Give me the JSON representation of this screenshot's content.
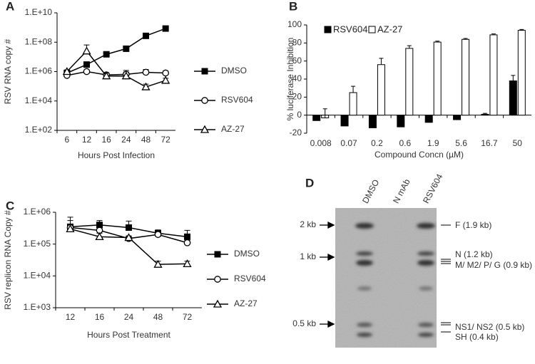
{
  "chart_data": [
    {
      "label": "A",
      "type": "line",
      "y_label": "RSV RNA copy #",
      "x_label": "Hours Post Infection",
      "categories": [
        "6",
        "12",
        "16",
        "24",
        "48",
        "72"
      ],
      "yscale": "log",
      "ylim": [
        100,
        10000000000
      ],
      "yticks": [
        {
          "value": 100,
          "label": "1.E+02"
        },
        {
          "value": 10000,
          "label": "1.E+04"
        },
        {
          "value": 1000000,
          "label": "1.E+06"
        },
        {
          "value": 100000000,
          "label": "1.E+08"
        },
        {
          "value": 10000000000,
          "label": "1.E+10"
        }
      ],
      "legend": "right",
      "series": [
        {
          "name": "DMSO",
          "color": "#000000",
          "marker": "square",
          "values": [
            800000,
            3000000,
            15000000,
            36000000,
            270000000,
            850000000
          ],
          "errors": [
            400000,
            1500000,
            5000000,
            15000000,
            100000000,
            300000000
          ]
        },
        {
          "name": "RSV604",
          "color": "#000000",
          "marker": "circle",
          "values": [
            550000,
            1000000,
            600000,
            650000,
            900000,
            800000
          ],
          "errors": [
            200000,
            300000,
            200000,
            300000,
            500000,
            300000
          ]
        },
        {
          "name": "AZ-27",
          "color": "#000000",
          "marker": "triangle",
          "values": [
            1000000,
            25000000,
            500000,
            500000,
            90000,
            250000
          ],
          "errors": [
            300000,
            40000000,
            300000,
            700000,
            50000,
            100000
          ]
        }
      ]
    },
    {
      "label": "B",
      "type": "bar",
      "y_label": "% luciferase Inhibition",
      "x_label": "Compound Concn (µM)",
      "categories": [
        "0.008",
        "0.07",
        "0.2",
        "0.6",
        "1.9",
        "5.6",
        "16.7",
        "50"
      ],
      "ylim": [
        -20,
        100
      ],
      "yticks": [
        -20,
        0,
        20,
        40,
        60,
        80,
        100
      ],
      "legend": "top-left",
      "series": [
        {
          "name": "RSV604",
          "color": "#000000",
          "values": [
            -6,
            -12,
            -14,
            -13,
            -8,
            -5,
            1,
            38
          ],
          "errors": [
            1,
            4,
            1,
            4,
            3,
            1,
            1,
            6
          ]
        },
        {
          "name": "AZ-27",
          "color": "#ffffff",
          "values": [
            -3,
            25,
            56,
            74,
            81,
            84,
            89,
            94
          ],
          "errors": [
            10,
            7,
            7,
            3,
            1,
            1,
            1,
            1
          ]
        }
      ]
    },
    {
      "label": "C",
      "type": "line",
      "y_label": "RSV replicon  RNA Copy #",
      "x_label": "Hours Post Treatment",
      "categories": [
        "12",
        "16",
        "24",
        "48",
        "72"
      ],
      "yscale": "log",
      "ylim": [
        1000,
        1000000
      ],
      "yticks": [
        {
          "value": 1000,
          "label": "1.E+03"
        },
        {
          "value": 10000,
          "label": "1.E+04"
        },
        {
          "value": 100000,
          "label": "1.E+05"
        },
        {
          "value": 1000000,
          "label": "1.E+06"
        }
      ],
      "legend": "right",
      "series": [
        {
          "name": "DMSO",
          "color": "#000000",
          "marker": "square",
          "values": [
            350000,
            400000,
            330000,
            220000,
            170000
          ],
          "errors": [
            200000,
            150000,
            200000,
            60000,
            100000
          ]
        },
        {
          "name": "RSV604",
          "color": "#000000",
          "marker": "circle",
          "values": [
            330000,
            270000,
            150000,
            200000,
            110000
          ],
          "errors": [
            50000,
            50000,
            30000,
            40000,
            20000
          ]
        },
        {
          "name": "AZ-27",
          "color": "#000000",
          "marker": "triangle",
          "values": [
            300000,
            170000,
            160000,
            23000,
            24000
          ],
          "errors": [
            400000,
            50000,
            20000,
            6000,
            5000
          ]
        }
      ]
    }
  ],
  "blot": {
    "label": "D",
    "lanes": [
      "DMSO",
      "N mAb",
      "RSV604"
    ],
    "size_markers": [
      "2 kb",
      "1 kb",
      "0.5 kb"
    ],
    "bands": [
      "F (1.9 kb)",
      "N (1.2 kb)",
      "M/ M2/ P/ G (0.9 kb)",
      "NS1/ NS2 (0.5 kb)",
      "SH (0.4 kb)"
    ]
  }
}
